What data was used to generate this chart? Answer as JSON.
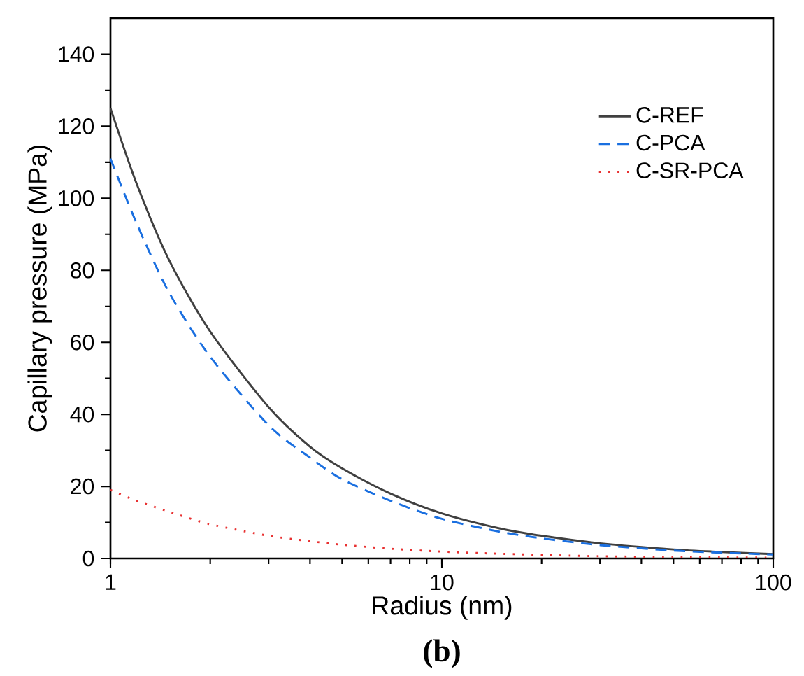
{
  "chart_data": {
    "type": "line",
    "xlabel": "Radius (nm)",
    "ylabel": "Capillary pressure (MPa)",
    "annotations": [
      "(b)"
    ],
    "log": "x",
    "xlim": [
      1,
      100
    ],
    "xticks": [
      1,
      10,
      100
    ],
    "ylim": [
      0,
      150
    ],
    "yticks": [
      0,
      20,
      40,
      60,
      80,
      100,
      120,
      140
    ],
    "grid": false,
    "legend": "top right",
    "marker": "none",
    "x": [
      1,
      1.2,
      1.5,
      2,
      3,
      4,
      5,
      7,
      10,
      15,
      20,
      30,
      50,
      70,
      100
    ],
    "series": [
      {
        "name": "C-REF",
        "color": "#404040",
        "line_style": "solid",
        "values": [
          125,
          104,
          83,
          63,
          42,
          31,
          25,
          18,
          12.5,
          8.3,
          6.3,
          4.2,
          2.5,
          1.8,
          1.2
        ]
      },
      {
        "name": "C-PCA",
        "color": "#1a6fe0",
        "line_style": "dashed",
        "values": [
          111,
          93,
          74,
          56,
          37,
          28,
          22,
          16,
          11,
          7.4,
          5.6,
          3.7,
          2.2,
          1.6,
          1.1
        ]
      },
      {
        "name": "C-SR-PCA",
        "color": "#e83030",
        "line_style": "dotted",
        "values": [
          19,
          16,
          13,
          9.5,
          6.3,
          4.8,
          3.8,
          2.7,
          1.9,
          1.3,
          1,
          0.6,
          0.4,
          0.3,
          0.2
        ]
      }
    ]
  }
}
